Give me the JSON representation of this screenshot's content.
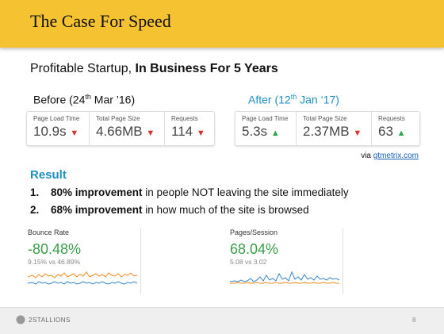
{
  "header": {
    "title": "The Case For Speed"
  },
  "subtitle": {
    "plain": "Profitable Startup, ",
    "bold": "In Business For 5 Years"
  },
  "before": {
    "label": {
      "pre": "Before (24",
      "sup": "th",
      "post": " Mar ’16)"
    },
    "metrics": [
      {
        "name": "Page Load Time",
        "value": "10.9s"
      },
      {
        "name": "Total Page Size",
        "value": "4.66MB"
      },
      {
        "name": "Requests",
        "value": "114"
      }
    ]
  },
  "after": {
    "label": {
      "pre": "After (12",
      "sup": "th",
      "post": " Jan ‘17)"
    },
    "metrics": [
      {
        "name": "Page Load Time",
        "value": "5.3s"
      },
      {
        "name": "Total Page Size",
        "value": "2.37MB"
      },
      {
        "name": "Requests",
        "value": "63"
      }
    ]
  },
  "source": {
    "prefix": "via ",
    "link": "gtmetrix.com"
  },
  "result": {
    "heading": "Result",
    "items": [
      {
        "number": "1.",
        "bold": "80% improvement",
        "text": " in people NOT leaving the site immediately"
      },
      {
        "number": "2.",
        "bold": "68% improvement",
        "text": " in how much of the site is browsed"
      }
    ]
  },
  "panels": [
    {
      "name": "Bounce Rate",
      "value": "-80.48%",
      "compare": "9.15% vs 46.89%"
    },
    {
      "name": "Pages/Session",
      "value": "68.04%",
      "compare": "5.08 vs 3.02"
    }
  ],
  "footer": {
    "logo": "2STALLIONS",
    "page": "8"
  }
}
